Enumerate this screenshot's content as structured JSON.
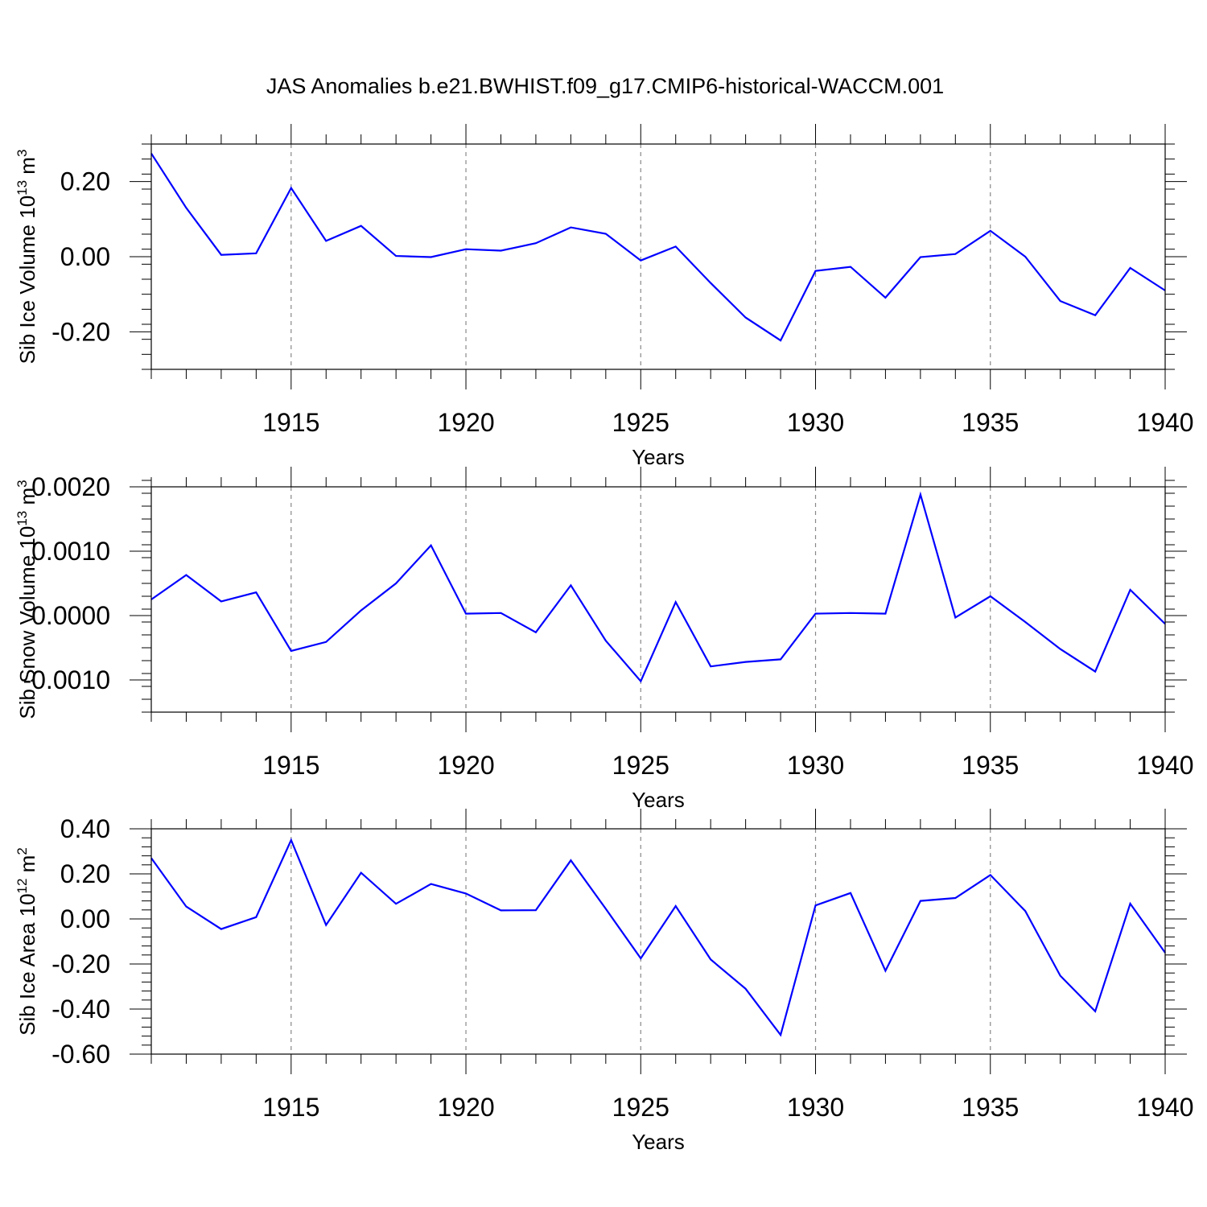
{
  "figure": {
    "title": "JAS Anomalies b.e21.BWHIST.f09_g17.CMIP6-historical-WACCM.001"
  },
  "colors": {
    "line": "#0000ff",
    "axes": "#000000",
    "grid": "#888888"
  },
  "chart_data": [
    {
      "type": "line",
      "title": "JAS Anomalies b.e21.BWHIST.f09_g17.CMIP6-historical-WACCM.001",
      "ylabel": {
        "base": "Sib Ice Volume 10",
        "exponent": "13",
        "unit": " m",
        "unit_exponent": "3"
      },
      "xlabel": "Years",
      "xlim": [
        1911,
        1940
      ],
      "ylim": [
        -0.3,
        0.3
      ],
      "xticks": [
        1915,
        1920,
        1925,
        1930,
        1935,
        1940
      ],
      "xtick_labels": [
        "1915",
        "1920",
        "1925",
        "1930",
        "1935",
        "1940"
      ],
      "yticks": [
        -0.2,
        0.0,
        0.2
      ],
      "ytick_labels": [
        "-0.20",
        "0.00",
        "0.20"
      ],
      "y_minor_step": 0.04,
      "vgrid": [
        1915,
        1920,
        1925,
        1930,
        1935
      ],
      "series": [
        {
          "name": "Sib Ice Volume",
          "x": [
            1911,
            1912,
            1913,
            1914,
            1915,
            1916,
            1917,
            1918,
            1919,
            1920,
            1921,
            1922,
            1923,
            1924,
            1925,
            1926,
            1927,
            1928,
            1929,
            1930,
            1931,
            1932,
            1933,
            1934,
            1935,
            1936,
            1937,
            1938,
            1939,
            1940
          ],
          "values": [
            0.275,
            0.13,
            0.005,
            0.009,
            0.183,
            0.042,
            0.082,
            0.002,
            -0.001,
            0.02,
            0.016,
            0.036,
            0.078,
            0.061,
            -0.01,
            0.027,
            -0.07,
            -0.162,
            -0.223,
            -0.038,
            -0.027,
            -0.109,
            -0.001,
            0.007,
            0.069,
            0.0,
            -0.118,
            -0.156,
            -0.03,
            -0.09
          ]
        }
      ]
    },
    {
      "type": "line",
      "ylabel": {
        "base": "Sib Snow Volume 10",
        "exponent": "13",
        "unit": " m",
        "unit_exponent": "3"
      },
      "xlabel": "Years",
      "xlim": [
        1911,
        1940
      ],
      "ylim": [
        -0.0015,
        0.002
      ],
      "xticks": [
        1915,
        1920,
        1925,
        1930,
        1935,
        1940
      ],
      "xtick_labels": [
        "1915",
        "1920",
        "1925",
        "1930",
        "1935",
        "1940"
      ],
      "yticks": [
        -0.001,
        0.0,
        0.001,
        0.002
      ],
      "ytick_labels": [
        "-0.0010",
        "0.0000",
        "0.0010",
        "0.0020"
      ],
      "y_minor_step": 0.0002,
      "vgrid": [
        1915,
        1920,
        1925,
        1930,
        1935
      ],
      "series": [
        {
          "name": "Sib Snow Volume",
          "x": [
            1911,
            1912,
            1913,
            1914,
            1915,
            1916,
            1917,
            1918,
            1919,
            1920,
            1921,
            1922,
            1923,
            1924,
            1925,
            1926,
            1927,
            1928,
            1929,
            1930,
            1931,
            1932,
            1933,
            1934,
            1935,
            1936,
            1937,
            1938,
            1939,
            1940
          ],
          "values": [
            0.00025,
            0.00063,
            0.00022,
            0.00036,
            -0.00055,
            -0.00041,
            8e-05,
            0.0005,
            0.00109,
            3e-05,
            4e-05,
            -0.00026,
            0.00047,
            -0.00039,
            -0.00102,
            0.00021,
            -0.00079,
            -0.00072,
            -0.00068,
            3e-05,
            4e-05,
            3e-05,
            0.00188,
            -3e-05,
            0.0003,
            -0.0001,
            -0.00052,
            -0.00087,
            0.0004,
            -0.00013
          ]
        }
      ]
    },
    {
      "type": "line",
      "ylabel": {
        "base": "Sib Ice Area 10",
        "exponent": "12",
        "unit": " m",
        "unit_exponent": "2"
      },
      "xlabel": "Years",
      "xlim": [
        1911,
        1940
      ],
      "ylim": [
        -0.6,
        0.4
      ],
      "xticks": [
        1915,
        1920,
        1925,
        1930,
        1935,
        1940
      ],
      "xtick_labels": [
        "1915",
        "1920",
        "1925",
        "1930",
        "1935",
        "1940"
      ],
      "yticks": [
        -0.6,
        -0.4,
        -0.2,
        0.0,
        0.2,
        0.4
      ],
      "ytick_labels": [
        "-0.60",
        "-0.40",
        "-0.20",
        "0.00",
        "0.20",
        "0.40"
      ],
      "y_minor_step": 0.04,
      "vgrid": [
        1915,
        1920,
        1925,
        1930,
        1935
      ],
      "series": [
        {
          "name": "Sib Ice Area",
          "x": [
            1911,
            1912,
            1913,
            1914,
            1915,
            1916,
            1917,
            1918,
            1919,
            1920,
            1921,
            1922,
            1923,
            1924,
            1925,
            1926,
            1927,
            1928,
            1929,
            1930,
            1931,
            1932,
            1933,
            1934,
            1935,
            1936,
            1937,
            1938,
            1939,
            1940
          ],
          "values": [
            0.27,
            0.055,
            -0.045,
            0.008,
            0.35,
            -0.027,
            0.205,
            0.067,
            0.155,
            0.113,
            0.038,
            0.039,
            0.26,
            0.045,
            -0.175,
            0.057,
            -0.18,
            -0.31,
            -0.515,
            0.06,
            0.115,
            -0.23,
            0.08,
            0.093,
            0.195,
            0.035,
            -0.252,
            -0.41,
            0.068,
            -0.15
          ]
        }
      ]
    }
  ]
}
